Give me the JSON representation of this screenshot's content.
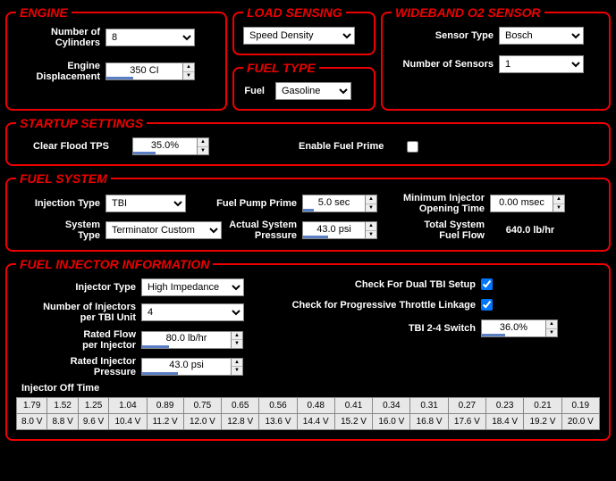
{
  "engine": {
    "legend": "ENGINE",
    "cylinders_label": "Number of\nCylinders",
    "cylinders_value": "8",
    "displacement_label": "Engine\nDisplacement",
    "displacement_value": "350 CI"
  },
  "load_sensing": {
    "legend": "LOAD SENSING",
    "value": "Speed Density"
  },
  "fuel_type": {
    "legend": "FUEL TYPE",
    "fuel_label": "Fuel",
    "fuel_value": "Gasoline"
  },
  "wideband": {
    "legend": "WIDEBAND O2 SENSOR",
    "sensor_type_label": "Sensor Type",
    "sensor_type_value": "Bosch",
    "num_sensors_label": "Number of Sensors",
    "num_sensors_value": "1"
  },
  "startup": {
    "legend": "STARTUP SETTINGS",
    "clear_flood_label": "Clear Flood TPS",
    "clear_flood_value": "35.0%",
    "enable_prime_label": "Enable Fuel Prime"
  },
  "fuel_system": {
    "legend": "FUEL SYSTEM",
    "injection_type_label": "Injection Type",
    "injection_type_value": "TBI",
    "system_type_label": "System\nType",
    "system_type_value": "Terminator Custom",
    "pump_prime_label": "Fuel Pump Prime",
    "pump_prime_value": "5.0 sec",
    "actual_pressure_label": "Actual System\nPressure",
    "actual_pressure_value": "43.0 psi",
    "min_open_label": "Minimum Injector\nOpening Time",
    "min_open_value": "0.00 msec",
    "total_flow_label": "Total System\nFuel Flow",
    "total_flow_value": "640.0 lb/hr"
  },
  "injector_info": {
    "legend": "FUEL INJECTOR INFORMATION",
    "injector_type_label": "Injector Type",
    "injector_type_value": "High Impedance",
    "num_inj_label": "Number of Injectors\nper TBI Unit",
    "num_inj_value": "4",
    "rated_flow_label": "Rated Flow\nper Injector",
    "rated_flow_value": "80.0 lb/hr",
    "rated_pressure_label": "Rated Injector\nPressure",
    "rated_pressure_value": "43.0 psi",
    "dual_tbi_label": "Check For Dual TBI Setup",
    "progressive_label": "Check for Progressive Throttle Linkage",
    "tbi_switch_label": "TBI 2-4 Switch",
    "tbi_switch_value": "36.0%",
    "off_time_label": "Injector Off Time",
    "off_time_row1": [
      "1.79",
      "1.52",
      "1.25",
      "1.04",
      "0.89",
      "0.75",
      "0.65",
      "0.56",
      "0.48",
      "0.41",
      "0.34",
      "0.31",
      "0.27",
      "0.23",
      "0.21",
      "0.19"
    ],
    "off_time_row2": [
      "8.0 V",
      "8.8 V",
      "9.6 V",
      "10.4 V",
      "11.2 V",
      "12.0 V",
      "12.8 V",
      "13.6 V",
      "14.4 V",
      "15.2 V",
      "16.0 V",
      "16.8 V",
      "17.6 V",
      "18.4 V",
      "19.2 V",
      "20.0 V"
    ]
  }
}
